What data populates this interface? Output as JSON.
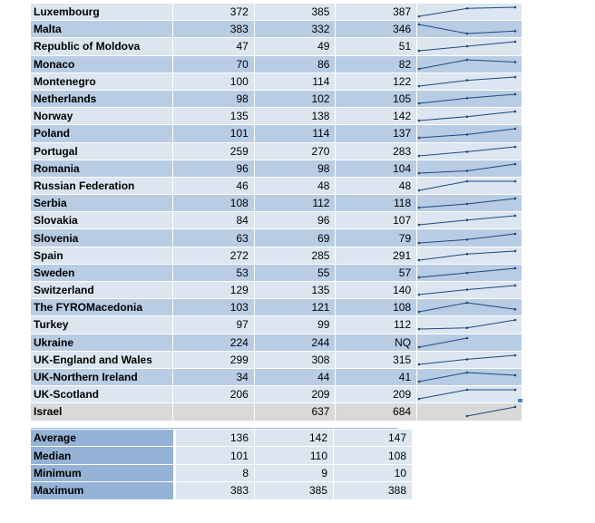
{
  "rows": [
    {
      "country": "Luxembourg",
      "v1": "372",
      "v2": "385",
      "v3": "387"
    },
    {
      "country": "Malta",
      "v1": "383",
      "v2": "332",
      "v3": "346"
    },
    {
      "country": "Republic of Moldova",
      "v1": "47",
      "v2": "49",
      "v3": "51"
    },
    {
      "country": "Monaco",
      "v1": "70",
      "v2": "86",
      "v3": "82"
    },
    {
      "country": "Montenegro",
      "v1": "100",
      "v2": "114",
      "v3": "122"
    },
    {
      "country": "Netherlands",
      "v1": "98",
      "v2": "102",
      "v3": "105"
    },
    {
      "country": "Norway",
      "v1": "135",
      "v2": "138",
      "v3": "142"
    },
    {
      "country": "Poland",
      "v1": "101",
      "v2": "114",
      "v3": "137"
    },
    {
      "country": "Portugal",
      "v1": "259",
      "v2": "270",
      "v3": "283"
    },
    {
      "country": "Romania",
      "v1": "96",
      "v2": "98",
      "v3": "104"
    },
    {
      "country": "Russian Federation",
      "v1": "46",
      "v2": "48",
      "v3": "48"
    },
    {
      "country": "Serbia",
      "v1": "108",
      "v2": "112",
      "v3": "118"
    },
    {
      "country": "Slovakia",
      "v1": "84",
      "v2": "96",
      "v3": "107"
    },
    {
      "country": "Slovenia",
      "v1": "63",
      "v2": "69",
      "v3": "79"
    },
    {
      "country": "Spain",
      "v1": "272",
      "v2": "285",
      "v3": "291"
    },
    {
      "country": "Sweden",
      "v1": "53",
      "v2": "55",
      "v3": "57"
    },
    {
      "country": "Switzerland",
      "v1": "129",
      "v2": "135",
      "v3": "140"
    },
    {
      "country": "The FYROMacedonia",
      "v1": "103",
      "v2": "121",
      "v3": "108"
    },
    {
      "country": "Turkey",
      "v1": "97",
      "v2": "99",
      "v3": "112"
    },
    {
      "country": "Ukraine",
      "v1": "224",
      "v2": "244",
      "v3": "NQ"
    },
    {
      "country": "UK-England and Wales",
      "v1": "299",
      "v2": "308",
      "v3": "315"
    },
    {
      "country": "UK-Northern Ireland",
      "v1": "34",
      "v2": "44",
      "v3": "41"
    },
    {
      "country": "UK-Scotland",
      "v1": "206",
      "v2": "209",
      "v3": "209"
    },
    {
      "country": "Israel",
      "v1": "",
      "v2": "637",
      "v3": "684"
    }
  ],
  "stats": [
    {
      "label": "Average",
      "v1": "136",
      "v2": "142",
      "v3": "147"
    },
    {
      "label": "Median",
      "v1": "101",
      "v2": "110",
      "v3": "108"
    },
    {
      "label": "Minimum",
      "v1": "8",
      "v2": "9",
      "v3": "10"
    },
    {
      "label": "Maximum",
      "v1": "383",
      "v2": "385",
      "v3": "388"
    }
  ],
  "colors": {
    "row_light": "#dce6f1",
    "row_dark": "#b8cce4",
    "row_israel": "#d9d9d9",
    "stats_label": "#95b3d7",
    "sparkline": "#1f497d"
  }
}
